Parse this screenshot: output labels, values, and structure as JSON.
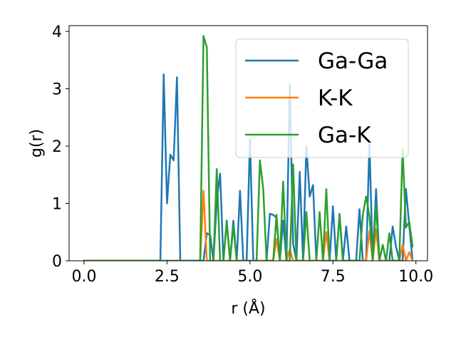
{
  "chart_data": {
    "type": "line",
    "xlabel": "r (Å)",
    "ylabel": "g(r)",
    "xlim": [
      -0.45,
      10.35
    ],
    "ylim": [
      0,
      4.1
    ],
    "xticks": [
      0.0,
      2.5,
      5.0,
      7.5,
      10.0
    ],
    "xtick_labels": [
      "0.0",
      "2.5",
      "5.0",
      "7.5",
      "10.0"
    ],
    "yticks": [
      0,
      1,
      2,
      3,
      4
    ],
    "ytick_labels": [
      "0",
      "1",
      "2",
      "3",
      "4"
    ],
    "grid": false,
    "legend_position": "upper right",
    "series": [
      {
        "name": "Ga-Ga",
        "color": "#1f77b4",
        "x": [
          0.0,
          2.3,
          2.4,
          2.5,
          2.6,
          2.7,
          2.8,
          2.9,
          3.0,
          3.1,
          3.2,
          3.3,
          3.4,
          3.5,
          3.6,
          3.7,
          3.8,
          3.9,
          4.0,
          4.1,
          4.2,
          4.3,
          4.4,
          4.5,
          4.6,
          4.7,
          4.8,
          4.9,
          5.0,
          5.1,
          5.2,
          5.3,
          5.4,
          5.5,
          5.6,
          5.7,
          5.8,
          5.9,
          6.0,
          6.1,
          6.2,
          6.3,
          6.4,
          6.5,
          6.6,
          6.7,
          6.8,
          6.9,
          7.0,
          7.1,
          7.2,
          7.3,
          7.4,
          7.5,
          7.6,
          7.7,
          7.8,
          7.9,
          8.0,
          8.1,
          8.2,
          8.3,
          8.4,
          8.5,
          8.6,
          8.7,
          8.8,
          8.9,
          9.0,
          9.1,
          9.2,
          9.3,
          9.4,
          9.5,
          9.6,
          9.7,
          9.8,
          9.9
        ],
        "y": [
          0.0,
          0.0,
          3.25,
          1.0,
          1.85,
          1.75,
          3.2,
          0.0,
          0.0,
          0.0,
          0.0,
          0.0,
          0.0,
          0.0,
          0.0,
          0.48,
          0.45,
          0.0,
          1.05,
          1.52,
          0.0,
          0.7,
          0.0,
          0.7,
          0.0,
          1.22,
          0.0,
          0.0,
          2.12,
          0.0,
          0.0,
          0.0,
          0.0,
          0.0,
          0.82,
          0.8,
          0.75,
          0.0,
          0.7,
          0.0,
          3.08,
          0.3,
          0.0,
          1.55,
          0.0,
          2.0,
          1.12,
          1.32,
          0.0,
          0.0,
          0.0,
          0.0,
          0.0,
          0.95,
          0.0,
          0.82,
          0.0,
          0.6,
          0.0,
          0.0,
          0.0,
          0.9,
          0.0,
          0.0,
          2.05,
          0.0,
          1.25,
          0.0,
          0.0,
          0.0,
          0.0,
          0.6,
          0.25,
          0.0,
          0.0,
          1.25,
          0.62,
          0.0
        ]
      },
      {
        "name": "K-K",
        "color": "#ff7f0e",
        "x": [
          0.0,
          3.4,
          3.5,
          3.6,
          3.7,
          3.8,
          3.9,
          5.7,
          5.8,
          5.9,
          6.0,
          6.1,
          6.2,
          6.3,
          7.1,
          7.2,
          7.3,
          7.4,
          7.5,
          8.4,
          8.5,
          8.6,
          8.7,
          8.8,
          8.9,
          9.1,
          9.2,
          9.3,
          9.4,
          9.5,
          9.6,
          9.7,
          9.8,
          9.9
        ],
        "y": [
          0.0,
          0.0,
          0.0,
          1.22,
          0.0,
          0.0,
          0.0,
          0.0,
          0.38,
          0.0,
          0.0,
          0.0,
          0.2,
          0.0,
          0.0,
          0.0,
          0.5,
          0.0,
          0.0,
          0.0,
          0.0,
          0.52,
          0.0,
          0.55,
          0.0,
          0.0,
          0.0,
          0.0,
          0.0,
          0.0,
          0.28,
          0.0,
          0.15,
          0.0
        ]
      },
      {
        "name": "Ga-K",
        "color": "#2ca02c",
        "x": [
          0.0,
          3.4,
          3.5,
          3.6,
          3.7,
          3.8,
          3.9,
          4.0,
          4.1,
          4.2,
          4.3,
          4.4,
          4.5,
          4.6,
          4.7,
          4.8,
          4.9,
          5.0,
          5.1,
          5.2,
          5.3,
          5.4,
          5.5,
          5.6,
          5.7,
          5.8,
          5.9,
          6.0,
          6.1,
          6.2,
          6.3,
          6.4,
          6.5,
          6.6,
          6.7,
          6.8,
          6.9,
          7.0,
          7.1,
          7.2,
          7.3,
          7.4,
          7.5,
          7.6,
          7.7,
          7.8,
          7.9,
          8.0,
          8.1,
          8.2,
          8.3,
          8.4,
          8.5,
          8.6,
          8.7,
          8.8,
          8.9,
          9.0,
          9.1,
          9.2,
          9.3,
          9.4,
          9.5,
          9.6,
          9.7,
          9.8,
          9.9
        ],
        "y": [
          0.0,
          0.0,
          0.0,
          3.92,
          3.72,
          0.0,
          0.0,
          1.6,
          0.0,
          0.0,
          0.68,
          0.0,
          0.6,
          0.0,
          0.0,
          0.0,
          0.0,
          0.0,
          0.0,
          0.0,
          1.75,
          1.25,
          0.0,
          0.0,
          0.0,
          0.8,
          0.0,
          1.38,
          0.0,
          0.0,
          1.68,
          0.0,
          0.0,
          0.0,
          0.85,
          0.0,
          0.0,
          0.0,
          0.85,
          0.0,
          1.25,
          0.0,
          0.0,
          0.0,
          0.8,
          0.0,
          0.0,
          0.0,
          0.0,
          0.0,
          0.0,
          0.8,
          1.12,
          0.78,
          0.0,
          0.98,
          0.0,
          0.28,
          0.0,
          0.48,
          0.0,
          0.0,
          0.0,
          1.95,
          0.58,
          0.68,
          0.25
        ]
      }
    ]
  }
}
